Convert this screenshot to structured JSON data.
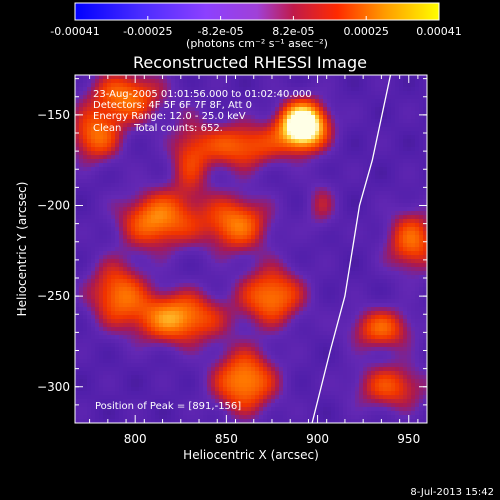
{
  "chart_data": {
    "type": "heatmap",
    "title": "Reconstructed RHESSI Image",
    "xlabel": "Heliocentric X (arcsec)",
    "ylabel": "Heliocentric Y (arcsec)",
    "xlim": [
      767,
      960
    ],
    "ylim": [
      -320,
      -128
    ],
    "xticks": [
      {
        "value": 800,
        "label": "800"
      },
      {
        "value": 850,
        "label": "850"
      },
      {
        "value": 900,
        "label": "900"
      },
      {
        "value": 950,
        "label": "950"
      }
    ],
    "yticks": [
      {
        "value": -150,
        "label": "−150"
      },
      {
        "value": -200,
        "label": "−200"
      },
      {
        "value": -250,
        "label": "−250"
      },
      {
        "value": -300,
        "label": "−300"
      }
    ],
    "annotations": [
      "23-Aug-2005 01:01:56.000 to 01:02:40.000",
      "Detectors: 4F 5F 6F 7F 8F, Att 0",
      "Energy Range: 12.0 - 25.0 keV",
      "Clean    Total counts: 652."
    ],
    "peak_label": "Position of Peak = [891,-156]",
    "peak": {
      "x": 891,
      "y": -156
    },
    "limb": [
      {
        "x": 940,
        "y": -128
      },
      {
        "x": 930,
        "y": -175
      },
      {
        "x": 923,
        "y": -200
      },
      {
        "x": 915,
        "y": -250
      },
      {
        "x": 907,
        "y": -280
      },
      {
        "x": 897,
        "y": -320
      }
    ],
    "blobs": [
      {
        "x": 892,
        "y": -156,
        "sx": 9,
        "sy": 9,
        "a": 1.0
      },
      {
        "x": 858,
        "y": -167,
        "sx": 16,
        "sy": 9,
        "a": 0.42
      },
      {
        "x": 795,
        "y": -140,
        "sx": 14,
        "sy": 10,
        "a": 0.45
      },
      {
        "x": 778,
        "y": -162,
        "sx": 10,
        "sy": 10,
        "a": 0.42
      },
      {
        "x": 812,
        "y": -208,
        "sx": 14,
        "sy": 11,
        "a": 0.5
      },
      {
        "x": 855,
        "y": -210,
        "sx": 13,
        "sy": 11,
        "a": 0.46
      },
      {
        "x": 790,
        "y": -248,
        "sx": 11,
        "sy": 12,
        "a": 0.42
      },
      {
        "x": 823,
        "y": -262,
        "sx": 17,
        "sy": 10,
        "a": 0.54
      },
      {
        "x": 875,
        "y": -250,
        "sx": 12,
        "sy": 11,
        "a": 0.48
      },
      {
        "x": 860,
        "y": -297,
        "sx": 12,
        "sy": 12,
        "a": 0.52
      },
      {
        "x": 935,
        "y": -268,
        "sx": 12,
        "sy": 8,
        "a": 0.4
      },
      {
        "x": 952,
        "y": -220,
        "sx": 10,
        "sy": 12,
        "a": 0.42
      },
      {
        "x": 940,
        "y": -300,
        "sx": 14,
        "sy": 9,
        "a": 0.36
      },
      {
        "x": 830,
        "y": -175,
        "sx": 8,
        "sy": 16,
        "a": 0.28
      },
      {
        "x": 902,
        "y": -200,
        "sx": 6,
        "sy": 10,
        "a": 0.2
      }
    ]
  },
  "colorbar": {
    "ticks": [
      "-0.00041",
      "-0.00025",
      "-8.2e-05",
      "8.2e-05",
      "0.00025",
      "0.00041"
    ],
    "unit": "(photons cm⁻² s⁻¹ asec⁻²)",
    "vmin": -0.00041,
    "vmax": 0.00041
  },
  "timestamp": "8-Jul-2013 15:42"
}
